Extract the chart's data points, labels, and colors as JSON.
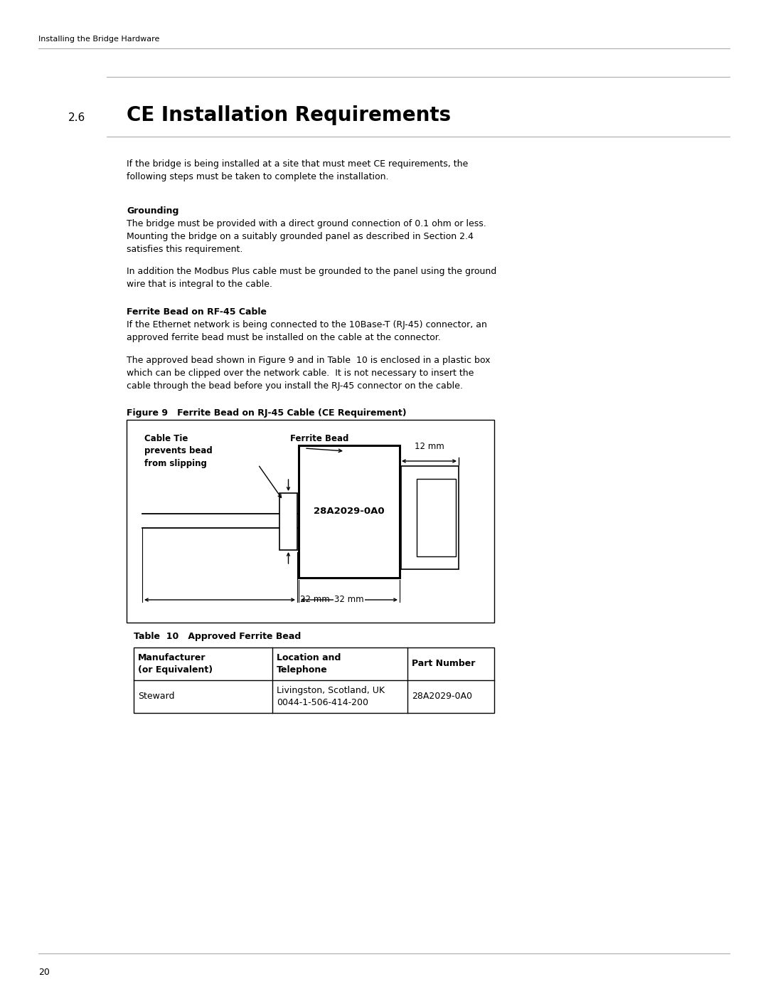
{
  "page_header": "Installing the Bridge Hardware",
  "section_num": "2.6",
  "section_title": "CE Installation Requirements",
  "intro_text": "If the bridge is being installed at a site that must meet CE requirements, the\nfollowing steps must be taken to complete the installation.",
  "grounding_heading": "Grounding",
  "grounding_text1": "The bridge must be provided with a direct ground connection of 0.1 ohm or less.\nMounting the bridge on a suitably grounded panel as described in Section 2.4\nsatisfies this requirement.",
  "grounding_text2": "In addition the Modbus Plus cable must be grounded to the panel using the ground\nwire that is integral to the cable.",
  "ferrite_heading": "Ferrite Bead on RF-45 Cable",
  "ferrite_text1": "If the Ethernet network is being connected to the 10Base-T (RJ-45) connector, an\napproved ferrite bead must be installed on the cable at the connector.",
  "ferrite_text2": "The approved bead shown in Figure 9 and in Table  10 is enclosed in a plastic box\nwhich can be clipped over the network cable.  It is not necessary to insert the\ncable through the bead before you install the RJ-45 connector on the cable.",
  "figure_caption": "Figure 9   Ferrite Bead on RJ-45 Cable (CE Requirement)",
  "table_caption": "Table  10   Approved Ferrite Bead",
  "table_headers": [
    "Manufacturer\n(or Equivalent)",
    "Location and\nTelephone",
    "Part Number"
  ],
  "table_row": [
    "Steward",
    "Livingston, Scotland, UK\n0044-1-506-414-200",
    "28A2029-0A0"
  ],
  "ferrite_label": "28A2029-0A0",
  "cable_tie_label": "Cable Tie\nprevents bead\nfrom slipping",
  "ferrite_bead_label": "Ferrite Bead",
  "dim_12mm": "12 mm",
  "dim_22mm": "22 mm",
  "dim_32mm": "32 mm",
  "page_number": "20",
  "bg_color": "#ffffff",
  "text_color": "#000000",
  "rule_color": "#aaaaaa"
}
